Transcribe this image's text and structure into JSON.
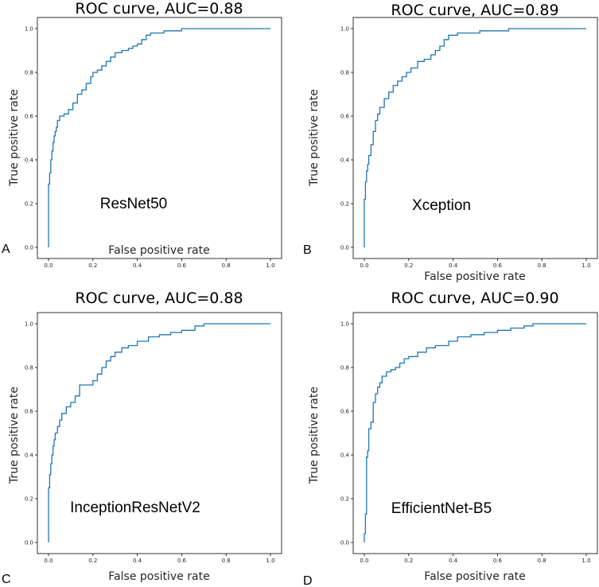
{
  "chart_data": [
    {
      "type": "line",
      "panel_letter": "A",
      "title": "ROC curve, AUC=0.88",
      "xlabel": "False positive rate",
      "ylabel": "True positive rate",
      "annotation": "ResNet50",
      "xlim": [
        0,
        1
      ],
      "ylim": [
        0,
        1
      ],
      "xticks": [
        "0.0",
        "0.2",
        "0.4",
        "0.6",
        "0.8",
        "1.0"
      ],
      "yticks": [
        "0.0",
        "0.2",
        "0.4",
        "0.6",
        "0.8",
        "1.0"
      ],
      "series": [
        {
          "name": "ROC",
          "color": "#1f77b4",
          "x": [
            0,
            0,
            0.005,
            0.005,
            0.01,
            0.01,
            0.015,
            0.015,
            0.02,
            0.02,
            0.025,
            0.025,
            0.03,
            0.03,
            0.035,
            0.035,
            0.04,
            0.04,
            0.05,
            0.05,
            0.07,
            0.07,
            0.09,
            0.09,
            0.11,
            0.11,
            0.13,
            0.13,
            0.15,
            0.15,
            0.17,
            0.17,
            0.19,
            0.19,
            0.2,
            0.2,
            0.22,
            0.22,
            0.24,
            0.24,
            0.26,
            0.26,
            0.28,
            0.28,
            0.3,
            0.3,
            0.33,
            0.33,
            0.36,
            0.36,
            0.38,
            0.38,
            0.4,
            0.4,
            0.42,
            0.42,
            0.44,
            0.44,
            0.46,
            0.46,
            0.52,
            0.52,
            0.6,
            0.6,
            1.0
          ],
          "y": [
            0,
            0.29,
            0.29,
            0.34,
            0.34,
            0.4,
            0.4,
            0.44,
            0.44,
            0.48,
            0.48,
            0.51,
            0.51,
            0.53,
            0.53,
            0.55,
            0.55,
            0.58,
            0.58,
            0.6,
            0.6,
            0.61,
            0.61,
            0.63,
            0.63,
            0.66,
            0.66,
            0.7,
            0.7,
            0.72,
            0.72,
            0.75,
            0.75,
            0.78,
            0.78,
            0.8,
            0.8,
            0.81,
            0.81,
            0.83,
            0.83,
            0.85,
            0.85,
            0.87,
            0.87,
            0.89,
            0.89,
            0.9,
            0.9,
            0.91,
            0.91,
            0.92,
            0.92,
            0.93,
            0.93,
            0.95,
            0.95,
            0.97,
            0.97,
            0.98,
            0.98,
            0.99,
            0.99,
            1.0,
            1.0
          ]
        }
      ]
    },
    {
      "type": "line",
      "panel_letter": "B",
      "title": "ROC curve, AUC=0.89",
      "xlabel": "False positive rate",
      "ylabel": "True positive rate",
      "annotation": "Xception",
      "xlim": [
        0,
        1
      ],
      "ylim": [
        0,
        1
      ],
      "xticks": [
        "0.0",
        "0.2",
        "0.4",
        "0.6",
        "0.8",
        "1.0"
      ],
      "yticks": [
        "0.0",
        "0.2",
        "0.4",
        "0.6",
        "0.8",
        "1.0"
      ],
      "series": [
        {
          "name": "ROC",
          "color": "#1f77b4",
          "x": [
            0,
            0,
            0.005,
            0.005,
            0.01,
            0.01,
            0.015,
            0.015,
            0.02,
            0.02,
            0.03,
            0.03,
            0.04,
            0.04,
            0.05,
            0.05,
            0.06,
            0.06,
            0.07,
            0.07,
            0.09,
            0.09,
            0.11,
            0.11,
            0.13,
            0.13,
            0.15,
            0.15,
            0.17,
            0.17,
            0.19,
            0.19,
            0.21,
            0.21,
            0.24,
            0.24,
            0.27,
            0.27,
            0.3,
            0.3,
            0.32,
            0.32,
            0.34,
            0.34,
            0.36,
            0.36,
            0.38,
            0.38,
            0.42,
            0.42,
            0.52,
            0.52,
            0.65,
            0.65,
            1.0
          ],
          "y": [
            0,
            0.22,
            0.22,
            0.3,
            0.3,
            0.35,
            0.35,
            0.38,
            0.38,
            0.42,
            0.42,
            0.47,
            0.47,
            0.53,
            0.53,
            0.58,
            0.58,
            0.61,
            0.61,
            0.64,
            0.64,
            0.68,
            0.68,
            0.71,
            0.71,
            0.74,
            0.74,
            0.76,
            0.76,
            0.78,
            0.78,
            0.8,
            0.8,
            0.82,
            0.82,
            0.85,
            0.85,
            0.86,
            0.86,
            0.88,
            0.88,
            0.9,
            0.9,
            0.92,
            0.92,
            0.95,
            0.95,
            0.97,
            0.97,
            0.98,
            0.98,
            0.99,
            0.99,
            1.0,
            1.0
          ]
        }
      ]
    },
    {
      "type": "line",
      "panel_letter": "C",
      "title": "ROC curve, AUC=0.88",
      "xlabel": "False positive rate",
      "ylabel": "True positive rate",
      "annotation": "InceptionResNetV2",
      "xlim": [
        0,
        1
      ],
      "ylim": [
        0,
        1
      ],
      "xticks": [
        "0.0",
        "0.2",
        "0.4",
        "0.6",
        "0.8",
        "1.0"
      ],
      "yticks": [
        "0.0",
        "0.2",
        "0.4",
        "0.6",
        "0.8",
        "1.0"
      ],
      "series": [
        {
          "name": "ROC",
          "color": "#1f77b4",
          "x": [
            0,
            0,
            0.005,
            0.005,
            0.01,
            0.01,
            0.015,
            0.015,
            0.02,
            0.02,
            0.025,
            0.025,
            0.03,
            0.03,
            0.04,
            0.04,
            0.05,
            0.05,
            0.06,
            0.06,
            0.08,
            0.08,
            0.1,
            0.1,
            0.12,
            0.12,
            0.14,
            0.14,
            0.2,
            0.2,
            0.22,
            0.22,
            0.24,
            0.24,
            0.26,
            0.26,
            0.28,
            0.28,
            0.3,
            0.3,
            0.33,
            0.33,
            0.36,
            0.36,
            0.4,
            0.4,
            0.45,
            0.45,
            0.5,
            0.5,
            0.55,
            0.55,
            0.6,
            0.6,
            0.66,
            0.66,
            0.7,
            0.7,
            1.0
          ],
          "y": [
            0,
            0.25,
            0.25,
            0.31,
            0.31,
            0.36,
            0.36,
            0.4,
            0.4,
            0.44,
            0.44,
            0.47,
            0.47,
            0.5,
            0.5,
            0.53,
            0.53,
            0.56,
            0.56,
            0.59,
            0.59,
            0.62,
            0.62,
            0.64,
            0.64,
            0.67,
            0.67,
            0.72,
            0.72,
            0.74,
            0.74,
            0.77,
            0.77,
            0.8,
            0.8,
            0.83,
            0.83,
            0.85,
            0.85,
            0.87,
            0.87,
            0.89,
            0.89,
            0.9,
            0.9,
            0.92,
            0.92,
            0.94,
            0.94,
            0.95,
            0.95,
            0.96,
            0.96,
            0.97,
            0.97,
            0.99,
            0.99,
            1.0,
            1.0
          ]
        }
      ]
    },
    {
      "type": "line",
      "panel_letter": "D",
      "title": "ROC curve, AUC=0.90",
      "xlabel": "False positive rate",
      "ylabel": "True positive rate",
      "annotation": "EfficientNet-B5",
      "xlim": [
        0,
        1
      ],
      "ylim": [
        0,
        1
      ],
      "xticks": [
        "0.0",
        "0.2",
        "0.4",
        "0.6",
        "0.8",
        "1.0"
      ],
      "yticks": [
        "0.0",
        "0.2",
        "0.4",
        "0.6",
        "0.8",
        "1.0"
      ],
      "series": [
        {
          "name": "ROC",
          "color": "#1f77b4",
          "x": [
            0,
            0,
            0.005,
            0.005,
            0.01,
            0.01,
            0.015,
            0.015,
            0.02,
            0.02,
            0.03,
            0.03,
            0.04,
            0.04,
            0.05,
            0.05,
            0.06,
            0.06,
            0.07,
            0.07,
            0.08,
            0.08,
            0.1,
            0.1,
            0.12,
            0.12,
            0.14,
            0.14,
            0.16,
            0.16,
            0.18,
            0.18,
            0.2,
            0.2,
            0.24,
            0.24,
            0.28,
            0.28,
            0.32,
            0.32,
            0.38,
            0.38,
            0.42,
            0.42,
            0.48,
            0.48,
            0.54,
            0.54,
            0.6,
            0.6,
            0.66,
            0.66,
            0.72,
            0.72,
            0.76,
            0.76,
            1.0
          ],
          "y": [
            0,
            0.04,
            0.04,
            0.13,
            0.13,
            0.39,
            0.39,
            0.42,
            0.42,
            0.52,
            0.52,
            0.55,
            0.55,
            0.64,
            0.64,
            0.68,
            0.68,
            0.71,
            0.71,
            0.73,
            0.73,
            0.76,
            0.76,
            0.78,
            0.78,
            0.79,
            0.79,
            0.8,
            0.8,
            0.82,
            0.82,
            0.84,
            0.84,
            0.85,
            0.85,
            0.87,
            0.87,
            0.89,
            0.89,
            0.9,
            0.9,
            0.92,
            0.92,
            0.94,
            0.94,
            0.95,
            0.95,
            0.96,
            0.96,
            0.97,
            0.97,
            0.98,
            0.98,
            0.99,
            0.99,
            1.0,
            1.0
          ]
        }
      ]
    }
  ]
}
